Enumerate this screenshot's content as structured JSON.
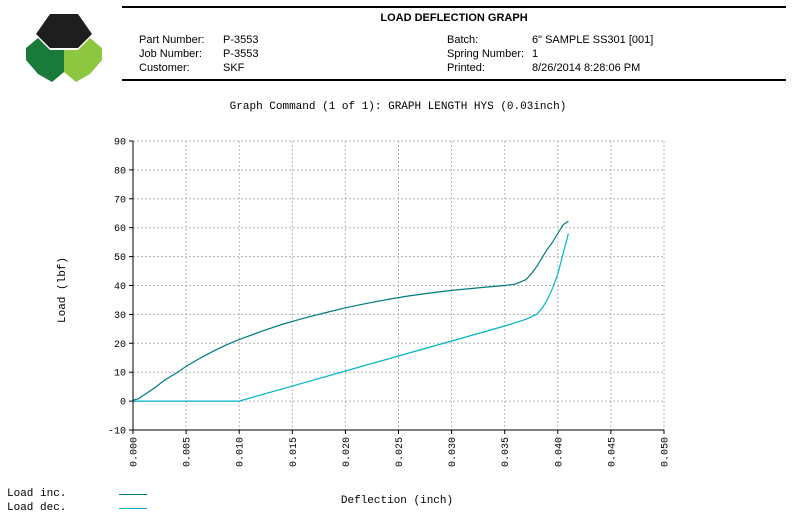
{
  "header": {
    "title": "LOAD DEFLECTION GRAPH",
    "part_number_label": "Part Number:",
    "part_number": "P-3553",
    "job_number_label": "Job Number:",
    "job_number": "P-3553",
    "customer_label": "Customer:",
    "customer": "SKF",
    "batch_label": "Batch:",
    "batch": "6\" SAMPLE SS301 [001]",
    "spring_number_label": "Spring Number:",
    "spring_number": "1",
    "printed_label": "Printed:",
    "printed": "8/26/2014 8:28:06 PM"
  },
  "logo": {
    "icon": "hexagon-logo-icon",
    "colors": [
      "#1e1e1e",
      "#1a7a3a",
      "#8dc63f"
    ]
  },
  "chart_data": {
    "type": "line",
    "title": "Graph Command (1 of 1): GRAPH LENGTH HYS (0.03inch)",
    "xlabel": "Deflection (inch)",
    "ylabel": "Load (lbf)",
    "xlim": [
      0,
      0.05
    ],
    "ylim": [
      -10,
      90
    ],
    "x_ticks": [
      "0.000",
      "0.005",
      "0.010",
      "0.015",
      "0.020",
      "0.025",
      "0.030",
      "0.035",
      "0.040",
      "0.045",
      "0.050"
    ],
    "y_ticks": [
      "-10",
      "0",
      "10",
      "20",
      "30",
      "40",
      "50",
      "60",
      "70",
      "80",
      "90"
    ],
    "grid": true,
    "legend_position": "bottom-left",
    "series": [
      {
        "name": "Load inc.",
        "color": "#007b7b",
        "points": [
          [
            0,
            0.3
          ],
          [
            0.0005,
            0.8
          ],
          [
            0.001,
            2
          ],
          [
            0.002,
            4.5
          ],
          [
            0.003,
            7.3
          ],
          [
            0.004,
            9.5
          ],
          [
            0.005,
            12
          ],
          [
            0.006,
            14.2
          ],
          [
            0.007,
            16.2
          ],
          [
            0.008,
            18.1
          ],
          [
            0.009,
            19.8
          ],
          [
            0.01,
            21.3
          ],
          [
            0.012,
            24
          ],
          [
            0.014,
            26.5
          ],
          [
            0.016,
            28.6
          ],
          [
            0.018,
            30.5
          ],
          [
            0.02,
            32.3
          ],
          [
            0.022,
            33.8
          ],
          [
            0.024,
            35.2
          ],
          [
            0.026,
            36.4
          ],
          [
            0.028,
            37.4
          ],
          [
            0.03,
            38.3
          ],
          [
            0.032,
            39
          ],
          [
            0.034,
            39.7
          ],
          [
            0.035,
            40
          ],
          [
            0.036,
            40.5
          ],
          [
            0.037,
            42
          ],
          [
            0.0375,
            44
          ],
          [
            0.038,
            46.5
          ],
          [
            0.0385,
            49.5
          ],
          [
            0.039,
            52.5
          ],
          [
            0.0395,
            55
          ],
          [
            0.04,
            58
          ],
          [
            0.0405,
            61
          ],
          [
            0.041,
            62.3
          ]
        ]
      },
      {
        "name": "Load dec.",
        "color": "#00b4c8",
        "points": [
          [
            0,
            0
          ],
          [
            0.005,
            0
          ],
          [
            0.01,
            0
          ],
          [
            0.015,
            5.2
          ],
          [
            0.02,
            10.4
          ],
          [
            0.025,
            15.6
          ],
          [
            0.03,
            20.8
          ],
          [
            0.035,
            26
          ],
          [
            0.037,
            28.3
          ],
          [
            0.038,
            30
          ],
          [
            0.0385,
            32
          ],
          [
            0.039,
            35
          ],
          [
            0.0395,
            39
          ],
          [
            0.04,
            44
          ],
          [
            0.0405,
            51
          ],
          [
            0.041,
            58
          ]
        ]
      }
    ]
  }
}
